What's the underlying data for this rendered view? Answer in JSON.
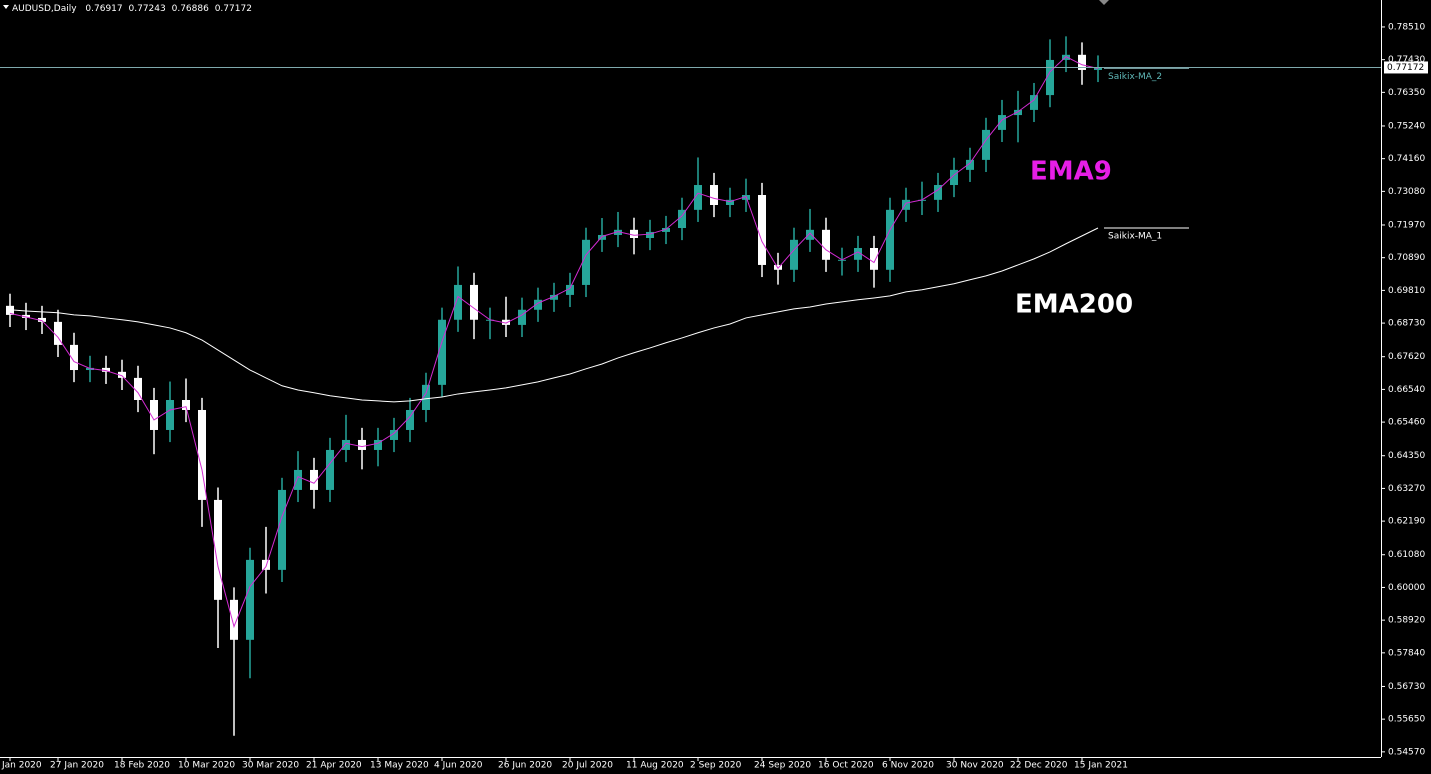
{
  "chart_data": {
    "type": "candlestick",
    "title": "AUDUSD,Daily",
    "header": {
      "open": 0.76917,
      "high": 0.77243,
      "low": 0.76886,
      "close": 0.77172
    },
    "bull_color": "#26a69a",
    "bear_color": "#ffffff",
    "price_line_color": "#7fa9ad",
    "categories": [
      "Jan 2020",
      null,
      null,
      "27 Jan 2020",
      null,
      null,
      null,
      "18 Feb 2020",
      null,
      null,
      null,
      "10 Mar 2020",
      null,
      null,
      null,
      "30 Mar 2020",
      null,
      null,
      null,
      "21 Apr 2020",
      null,
      null,
      null,
      "13 May 2020",
      null,
      null,
      null,
      "4 Jun 2020",
      null,
      null,
      null,
      "26 Jun 2020",
      null,
      null,
      null,
      "20 Jul 2020",
      null,
      null,
      null,
      "11 Aug 2020",
      null,
      null,
      null,
      "2 Sep 2020",
      null,
      null,
      null,
      "24 Sep 2020",
      null,
      null,
      null,
      "16 Oct 2020",
      null,
      null,
      null,
      "6 Nov 2020",
      null,
      null,
      null,
      "30 Nov 2020",
      null,
      null,
      null,
      "22 Dec 2020",
      null,
      null,
      null,
      "15 Jan 2021",
      null
    ],
    "open": [
      0.693,
      0.69,
      0.689,
      0.6877,
      0.6801,
      0.6718,
      0.6725,
      0.6712,
      0.6692,
      0.6619,
      0.652,
      0.6619,
      0.6586,
      0.6289,
      0.5959,
      0.5827,
      0.6091,
      0.6058,
      0.6322,
      0.6388,
      0.6322,
      0.6454,
      0.6487,
      0.6454,
      0.6487,
      0.652,
      0.6586,
      0.6669,
      0.6884,
      0.6999,
      0.6884,
      0.6884,
      0.6867,
      0.6917,
      0.695,
      0.6966,
      0.6999,
      0.7148,
      0.7164,
      0.7181,
      0.7154,
      0.7174,
      0.7187,
      0.7247,
      0.7329,
      0.7263,
      0.728,
      0.7296,
      0.7065,
      0.7049,
      0.7148,
      0.7181,
      0.7082,
      0.7082,
      0.7121,
      0.7049,
      0.7247,
      0.728,
      0.728,
      0.7329,
      0.7379,
      0.7412,
      0.7511,
      0.756,
      0.7577,
      0.7626,
      0.7742,
      0.7759,
      0.7709
    ],
    "high": [
      0.697,
      0.694,
      0.693,
      0.6917,
      0.6841,
      0.6765,
      0.6765,
      0.6752,
      0.6732,
      0.6659,
      0.668,
      0.669,
      0.6626,
      0.633,
      0.6,
      0.6131,
      0.62,
      0.6362,
      0.645,
      0.6428,
      0.6494,
      0.657,
      0.6527,
      0.6527,
      0.656,
      0.6626,
      0.6709,
      0.6924,
      0.706,
      0.7039,
      0.6924,
      0.696,
      0.6957,
      0.699,
      0.7006,
      0.7039,
      0.7188,
      0.722,
      0.724,
      0.7221,
      0.7214,
      0.7227,
      0.7287,
      0.742,
      0.7369,
      0.732,
      0.735,
      0.7336,
      0.7105,
      0.7188,
      0.725,
      0.7221,
      0.7122,
      0.7161,
      0.7161,
      0.7287,
      0.732,
      0.734,
      0.7369,
      0.7419,
      0.7452,
      0.7551,
      0.761,
      0.764,
      0.7666,
      0.781,
      0.782,
      0.78,
      0.7757
    ],
    "low": [
      0.686,
      0.685,
      0.6837,
      0.6761,
      0.6678,
      0.6678,
      0.6672,
      0.6652,
      0.6579,
      0.644,
      0.648,
      0.6546,
      0.62,
      0.58,
      0.551,
      0.57,
      0.598,
      0.6018,
      0.6282,
      0.626,
      0.6282,
      0.6414,
      0.639,
      0.64,
      0.6447,
      0.648,
      0.6546,
      0.6629,
      0.6844,
      0.682,
      0.682,
      0.6827,
      0.6827,
      0.6877,
      0.691,
      0.6926,
      0.6959,
      0.7108,
      0.7124,
      0.71,
      0.7114,
      0.7134,
      0.7147,
      0.7207,
      0.7223,
      0.7223,
      0.724,
      0.7025,
      0.7,
      0.7009,
      0.7108,
      0.7042,
      0.703,
      0.7042,
      0.699,
      0.7009,
      0.7207,
      0.723,
      0.724,
      0.7289,
      0.7339,
      0.7372,
      0.7471,
      0.747,
      0.7537,
      0.7586,
      0.7702,
      0.766,
      0.7669
    ],
    "close": [
      0.69,
      0.689,
      0.6877,
      0.6801,
      0.6718,
      0.6725,
      0.6712,
      0.6692,
      0.6619,
      0.652,
      0.6619,
      0.6586,
      0.6289,
      0.5959,
      0.5827,
      0.6091,
      0.6058,
      0.6322,
      0.6388,
      0.6322,
      0.6454,
      0.6487,
      0.6454,
      0.6487,
      0.652,
      0.6586,
      0.6669,
      0.6884,
      0.6999,
      0.6884,
      0.6884,
      0.6867,
      0.6917,
      0.695,
      0.6966,
      0.6999,
      0.7148,
      0.7164,
      0.7181,
      0.7154,
      0.7174,
      0.7187,
      0.7247,
      0.7329,
      0.7263,
      0.728,
      0.7296,
      0.7065,
      0.7049,
      0.7148,
      0.7181,
      0.7082,
      0.7082,
      0.7121,
      0.7049,
      0.7247,
      0.728,
      0.728,
      0.7329,
      0.7379,
      0.7412,
      0.7511,
      0.756,
      0.7577,
      0.7626,
      0.7742,
      0.7759,
      0.7709,
      0.7717
    ],
    "series": [
      {
        "name": "Saikix-MA_2",
        "color": "#d22bd2",
        "label_color": "#5fb8b8",
        "values": [
          0.6905,
          0.6893,
          0.6881,
          0.6826,
          0.6746,
          0.6723,
          0.6716,
          0.6699,
          0.6643,
          0.6553,
          0.6586,
          0.6597,
          0.6388,
          0.6069,
          0.5871,
          0.6003,
          0.6069,
          0.6234,
          0.6366,
          0.6344,
          0.641,
          0.6476,
          0.6465,
          0.6476,
          0.6509,
          0.6564,
          0.6641,
          0.6812,
          0.6961,
          0.6922,
          0.6884,
          0.6873,
          0.69,
          0.6939,
          0.6961,
          0.6988,
          0.7098,
          0.7159,
          0.7175,
          0.7163,
          0.7167,
          0.7183,
          0.7227,
          0.7302,
          0.7285,
          0.7274,
          0.7291,
          0.7142,
          0.7054,
          0.7115,
          0.717,
          0.7115,
          0.7082,
          0.7108,
          0.7073,
          0.7181,
          0.7269,
          0.728,
          0.7313,
          0.7362,
          0.7401,
          0.7478,
          0.7544,
          0.7571,
          0.761,
          0.7703,
          0.7753,
          0.7726,
          0.7714
        ]
      },
      {
        "name": "Saikix-MA_1",
        "color": "#ffffff",
        "label_color": "#ffffff",
        "values": [
          0.6917,
          0.6913,
          0.691,
          0.6907,
          0.69,
          0.6897,
          0.689,
          0.6884,
          0.6877,
          0.6867,
          0.6857,
          0.6841,
          0.6817,
          0.6784,
          0.6751,
          0.6718,
          0.6692,
          0.6666,
          0.6652,
          0.6643,
          0.6633,
          0.6626,
          0.6619,
          0.6616,
          0.6613,
          0.6616,
          0.6623,
          0.6629,
          0.6639,
          0.6646,
          0.6652,
          0.6659,
          0.6669,
          0.6679,
          0.6692,
          0.6705,
          0.6722,
          0.6738,
          0.6758,
          0.6775,
          0.6791,
          0.6808,
          0.6824,
          0.6841,
          0.6857,
          0.687,
          0.689,
          0.69,
          0.691,
          0.692,
          0.6926,
          0.6936,
          0.6943,
          0.695,
          0.6956,
          0.6963,
          0.6976,
          0.6983,
          0.6993,
          0.7003,
          0.7016,
          0.7029,
          0.7045,
          0.7065,
          0.7085,
          0.7108,
          0.7135,
          0.7161,
          0.7187
        ]
      }
    ],
    "annotations": [
      {
        "text": "EMA9",
        "color": "#e61ee6"
      },
      {
        "text": "EMA200",
        "color": "#ffffff"
      }
    ],
    "ylim": [
      0.544,
      0.794
    ],
    "yticks": [
      {
        "value": 0.7851,
        "label": "0.78510"
      },
      {
        "value": 0.7743,
        "label": "0.77430"
      },
      {
        "value": 0.7635,
        "label": "0.76350"
      },
      {
        "value": 0.7524,
        "label": "0.75240"
      },
      {
        "value": 0.7416,
        "label": "0.74160"
      },
      {
        "value": 0.7308,
        "label": "0.73080"
      },
      {
        "value": 0.7197,
        "label": "0.71970"
      },
      {
        "value": 0.7089,
        "label": "0.70890"
      },
      {
        "value": 0.6981,
        "label": "0.69810"
      },
      {
        "value": 0.6873,
        "label": "0.68730"
      },
      {
        "value": 0.6762,
        "label": "0.67620"
      },
      {
        "value": 0.6654,
        "label": "0.66540"
      },
      {
        "value": 0.6546,
        "label": "0.65460"
      },
      {
        "value": 0.6435,
        "label": "0.64350"
      },
      {
        "value": 0.6327,
        "label": "0.63270"
      },
      {
        "value": 0.6219,
        "label": "0.62190"
      },
      {
        "value": 0.6108,
        "label": "0.61080"
      },
      {
        "value": 0.6,
        "label": "0.60000"
      },
      {
        "value": 0.5892,
        "label": "0.58920"
      },
      {
        "value": 0.5784,
        "label": "0.57840"
      },
      {
        "value": 0.5673,
        "label": "0.56730"
      },
      {
        "value": 0.5565,
        "label": "0.55650"
      },
      {
        "value": 0.5457,
        "label": "0.54570"
      }
    ],
    "grid": false
  }
}
